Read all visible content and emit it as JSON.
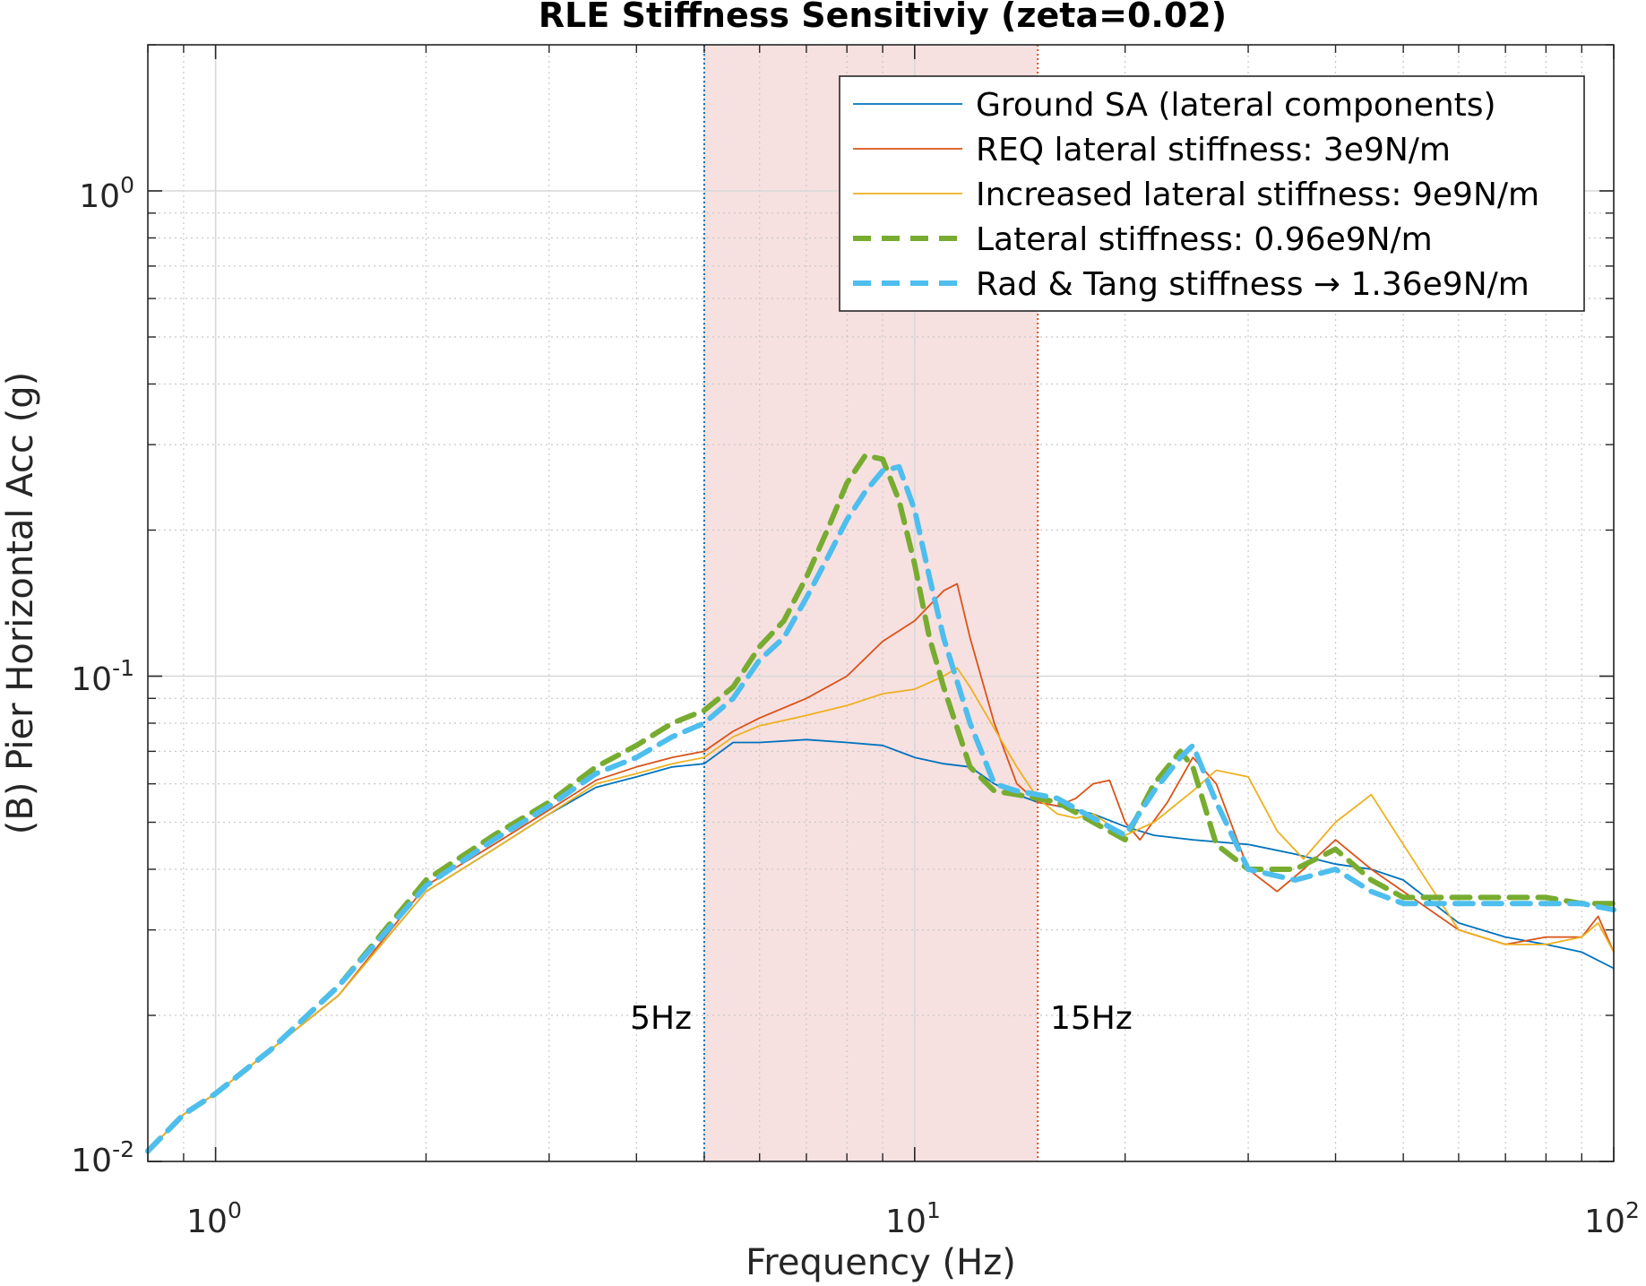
{
  "chart_data": {
    "type": "line",
    "title": "RLE Stiffness Sensitiviy (zeta=0.02)",
    "xlabel": "Frequency (Hz)",
    "ylabel": "(B) Pier Horizontal Acc (g)",
    "xscale": "log",
    "yscale": "log",
    "xlim": [
      0.8,
      100
    ],
    "ylim": [
      0.01,
      2
    ],
    "grid": true,
    "minor_grid": true,
    "legend_position": "top-right",
    "x_ticks": [
      {
        "value": 1,
        "base": "10",
        "exp": "0"
      },
      {
        "value": 10,
        "base": "10",
        "exp": "1"
      },
      {
        "value": 100,
        "base": "10",
        "exp": "2"
      }
    ],
    "y_ticks": [
      {
        "value": 0.01,
        "base": "10",
        "exp": "-2"
      },
      {
        "value": 0.1,
        "base": "10",
        "exp": "-1"
      },
      {
        "value": 1,
        "base": "10",
        "exp": "0"
      }
    ],
    "band": {
      "from": 5,
      "to": 15,
      "color": "#f7e0e0"
    },
    "markers": [
      {
        "x": 5,
        "label": "5Hz",
        "color": "#0072bd"
      },
      {
        "x": 15,
        "label": "15Hz",
        "color": "#d95319"
      }
    ],
    "series": [
      {
        "name": "Ground SA (lateral components)",
        "color": "#0072bd",
        "dash": "solid",
        "x": [
          0.8,
          0.9,
          1,
          1.2,
          1.5,
          2,
          2.5,
          3,
          3.5,
          4,
          4.5,
          5,
          5.5,
          6,
          7,
          8,
          9,
          10,
          11,
          12,
          13,
          14,
          15,
          16,
          17,
          18,
          20,
          22,
          25,
          30,
          35,
          40,
          45,
          50,
          60,
          70,
          80,
          90,
          100
        ],
        "y": [
          0.0105,
          0.0125,
          0.0138,
          0.017,
          0.022,
          0.036,
          0.044,
          0.052,
          0.059,
          0.062,
          0.065,
          0.066,
          0.073,
          0.073,
          0.074,
          0.073,
          0.072,
          0.068,
          0.066,
          0.065,
          0.06,
          0.057,
          0.055,
          0.054,
          0.053,
          0.052,
          0.049,
          0.047,
          0.046,
          0.045,
          0.043,
          0.041,
          0.04,
          0.038,
          0.031,
          0.029,
          0.028,
          0.027,
          0.025
        ]
      },
      {
        "name": "REQ lateral stiffness: 3e9N/m",
        "color": "#d95319",
        "dash": "solid",
        "x": [
          0.8,
          0.9,
          1,
          1.2,
          1.5,
          2,
          2.5,
          3,
          3.5,
          4,
          4.5,
          5,
          5.5,
          6,
          7,
          8,
          9,
          10,
          11,
          11.5,
          12,
          13,
          14,
          15,
          16,
          17,
          18,
          19,
          20,
          21,
          23,
          25,
          27,
          30,
          33,
          36,
          40,
          45,
          50,
          60,
          70,
          80,
          90,
          95,
          100
        ],
        "y": [
          0.0105,
          0.0125,
          0.0138,
          0.017,
          0.022,
          0.037,
          0.045,
          0.053,
          0.061,
          0.065,
          0.068,
          0.07,
          0.077,
          0.082,
          0.09,
          0.1,
          0.118,
          0.13,
          0.15,
          0.155,
          0.12,
          0.08,
          0.06,
          0.055,
          0.054,
          0.056,
          0.06,
          0.061,
          0.05,
          0.046,
          0.055,
          0.068,
          0.06,
          0.04,
          0.036,
          0.04,
          0.046,
          0.04,
          0.036,
          0.03,
          0.028,
          0.029,
          0.029,
          0.032,
          0.027
        ]
      },
      {
        "name": "Increased lateral stiffness: 9e9N/m",
        "color": "#edb120",
        "dash": "solid",
        "x": [
          0.8,
          0.9,
          1,
          1.2,
          1.5,
          2,
          2.5,
          3,
          3.5,
          4,
          4.5,
          5,
          5.5,
          6,
          7,
          8,
          9,
          10,
          11,
          11.5,
          12,
          13,
          14,
          15,
          16,
          17,
          18,
          20,
          22,
          25,
          27,
          30,
          33,
          36,
          40,
          45,
          50,
          60,
          70,
          80,
          90,
          95,
          100
        ],
        "y": [
          0.0105,
          0.0125,
          0.0138,
          0.017,
          0.022,
          0.036,
          0.044,
          0.052,
          0.06,
          0.063,
          0.066,
          0.068,
          0.075,
          0.079,
          0.083,
          0.087,
          0.092,
          0.094,
          0.1,
          0.104,
          0.095,
          0.078,
          0.065,
          0.056,
          0.052,
          0.051,
          0.052,
          0.047,
          0.05,
          0.058,
          0.064,
          0.062,
          0.048,
          0.042,
          0.05,
          0.057,
          0.045,
          0.03,
          0.028,
          0.028,
          0.029,
          0.031,
          0.027
        ]
      },
      {
        "name": "Lateral stiffness: 0.96e9N/m",
        "color": "#77ac30",
        "dash": "dashed",
        "x": [
          0.8,
          0.9,
          1,
          1.2,
          1.5,
          2,
          2.5,
          3,
          3.5,
          4,
          4.5,
          5,
          5.5,
          6,
          6.5,
          7,
          7.5,
          8,
          8.5,
          9,
          9.5,
          10,
          10.5,
          11,
          12,
          13,
          14,
          15,
          16,
          18,
          20,
          22,
          24,
          25,
          27,
          30,
          35,
          40,
          45,
          50,
          60,
          70,
          80,
          90,
          100
        ],
        "y": [
          0.0105,
          0.0125,
          0.0138,
          0.017,
          0.023,
          0.038,
          0.047,
          0.055,
          0.065,
          0.072,
          0.08,
          0.085,
          0.095,
          0.115,
          0.13,
          0.16,
          0.2,
          0.25,
          0.285,
          0.28,
          0.23,
          0.17,
          0.12,
          0.095,
          0.065,
          0.058,
          0.057,
          0.056,
          0.055,
          0.05,
          0.046,
          0.06,
          0.07,
          0.065,
          0.045,
          0.04,
          0.04,
          0.044,
          0.038,
          0.035,
          0.035,
          0.035,
          0.035,
          0.034,
          0.034
        ]
      },
      {
        "name": "Rad & Tang stiffness → 1.36e9N/m",
        "color": "#4dbeee",
        "dash": "dashed",
        "x": [
          0.8,
          0.9,
          1,
          1.2,
          1.5,
          2,
          2.5,
          3,
          3.5,
          4,
          4.5,
          5,
          5.5,
          6,
          6.5,
          7,
          7.5,
          8,
          8.5,
          9,
          9.5,
          10,
          10.5,
          11,
          12,
          13,
          14,
          15,
          16,
          18,
          20,
          22,
          24,
          25,
          27,
          30,
          35,
          40,
          45,
          50,
          60,
          70,
          80,
          90,
          100
        ],
        "y": [
          0.0105,
          0.0125,
          0.0138,
          0.017,
          0.023,
          0.037,
          0.046,
          0.054,
          0.063,
          0.068,
          0.075,
          0.08,
          0.09,
          0.108,
          0.12,
          0.145,
          0.175,
          0.21,
          0.24,
          0.265,
          0.27,
          0.22,
          0.16,
          0.12,
          0.08,
          0.06,
          0.058,
          0.057,
          0.056,
          0.051,
          0.047,
          0.058,
          0.068,
          0.072,
          0.055,
          0.04,
          0.038,
          0.04,
          0.036,
          0.034,
          0.034,
          0.034,
          0.034,
          0.034,
          0.033
        ]
      }
    ]
  }
}
